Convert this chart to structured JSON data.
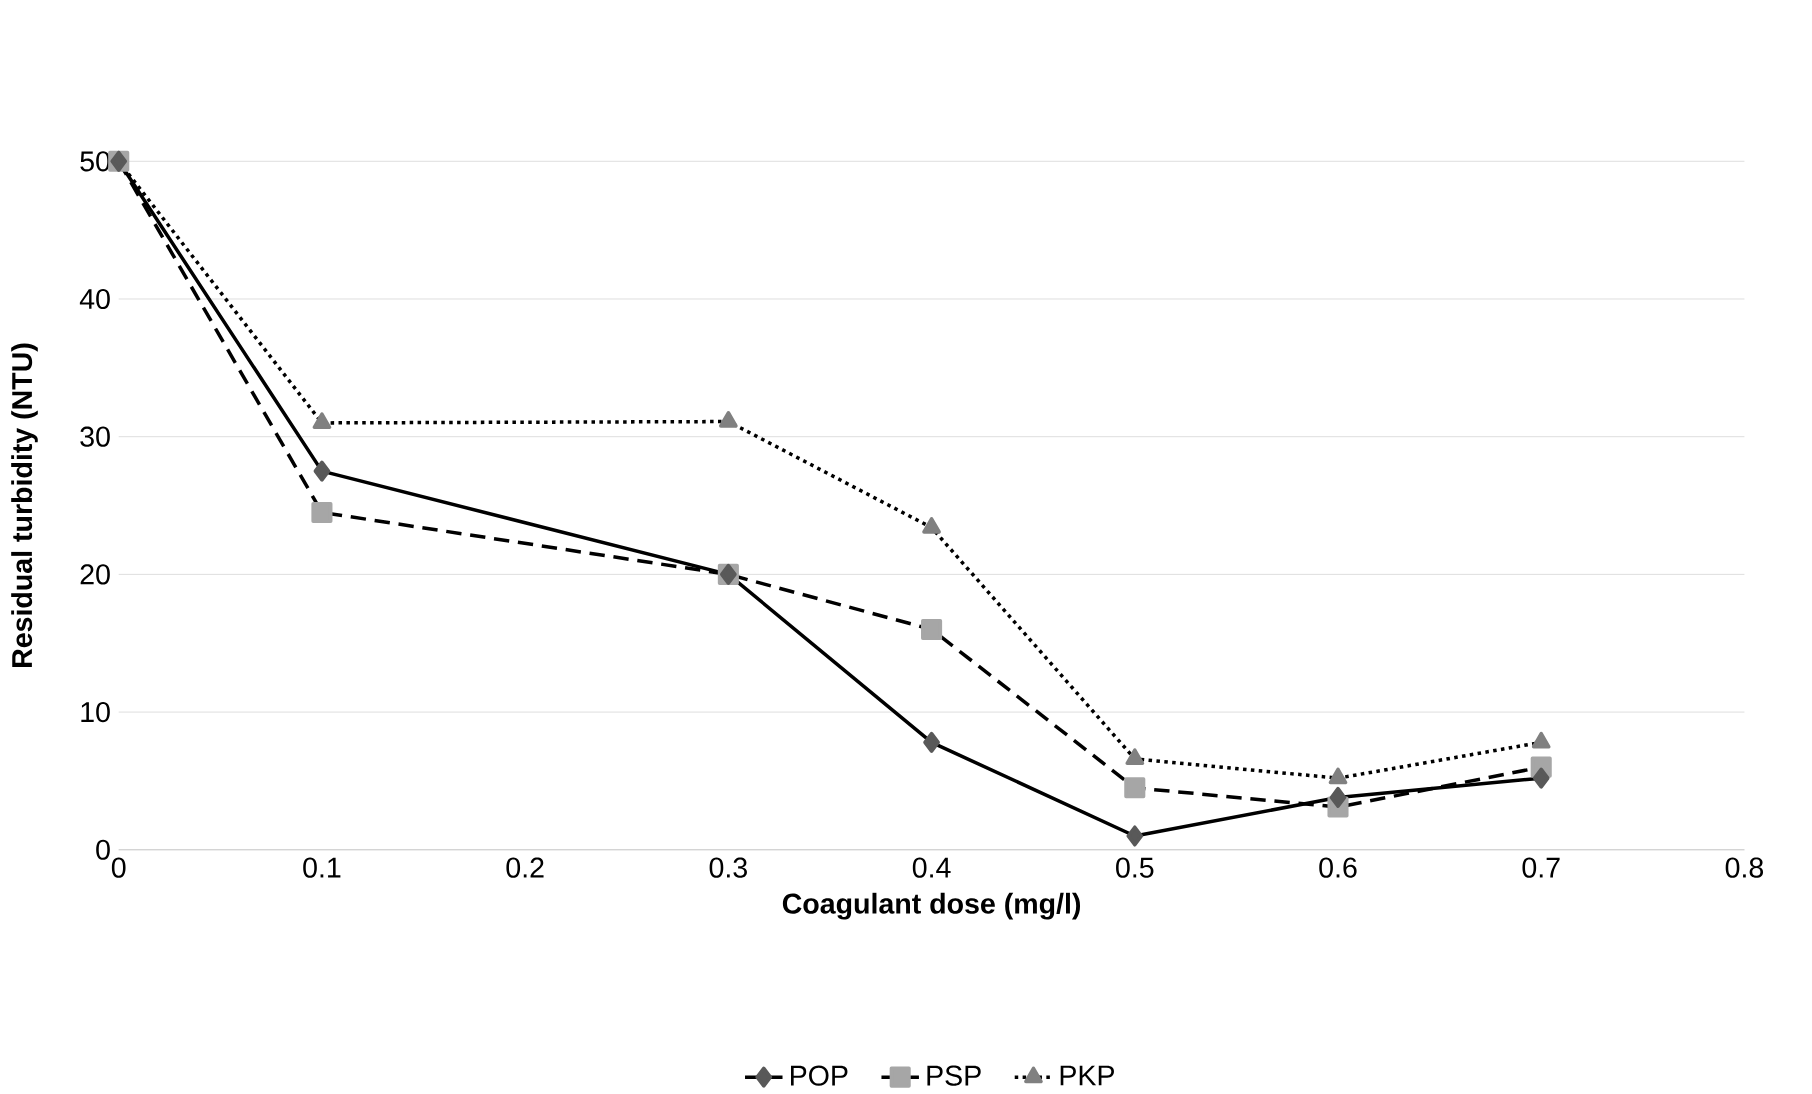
{
  "chart_data": {
    "type": "line",
    "xlabel": "Coagulant dose (mg/l)",
    "ylabel": "Residual turbidity (NTU)",
    "xlim": [
      0,
      0.8
    ],
    "xticks": [
      0,
      0.1,
      0.2,
      0.3,
      0.4,
      0.5,
      0.6,
      0.7,
      0.8
    ],
    "ylim": [
      0,
      50
    ],
    "yticks": [
      0,
      10,
      20,
      30,
      40,
      50
    ],
    "grid": "y",
    "legend": "bottom",
    "series": [
      {
        "name": "POP",
        "color": "#595959",
        "marker": "diamond",
        "line_style": "solid",
        "x": [
          0,
          0.1,
          0.3,
          0.4,
          0.5,
          0.6,
          0.7
        ],
        "values": [
          50,
          27.5,
          20,
          7.8,
          1,
          3.8,
          5.2
        ]
      },
      {
        "name": "PSP",
        "color": "#a6a6a6",
        "marker": "square",
        "line_style": "dashed",
        "x": [
          0,
          0.1,
          0.3,
          0.4,
          0.5,
          0.6,
          0.7
        ],
        "values": [
          50,
          24.5,
          20,
          16,
          4.5,
          3.1,
          6
        ]
      },
      {
        "name": "PKP",
        "color": "#808080",
        "marker": "triangle",
        "line_style": "dotted",
        "x": [
          0,
          0.1,
          0.3,
          0.4,
          0.5,
          0.6,
          0.7
        ],
        "values": [
          50,
          31,
          31.1,
          23.4,
          6.6,
          5.2,
          7.8
        ]
      }
    ]
  }
}
